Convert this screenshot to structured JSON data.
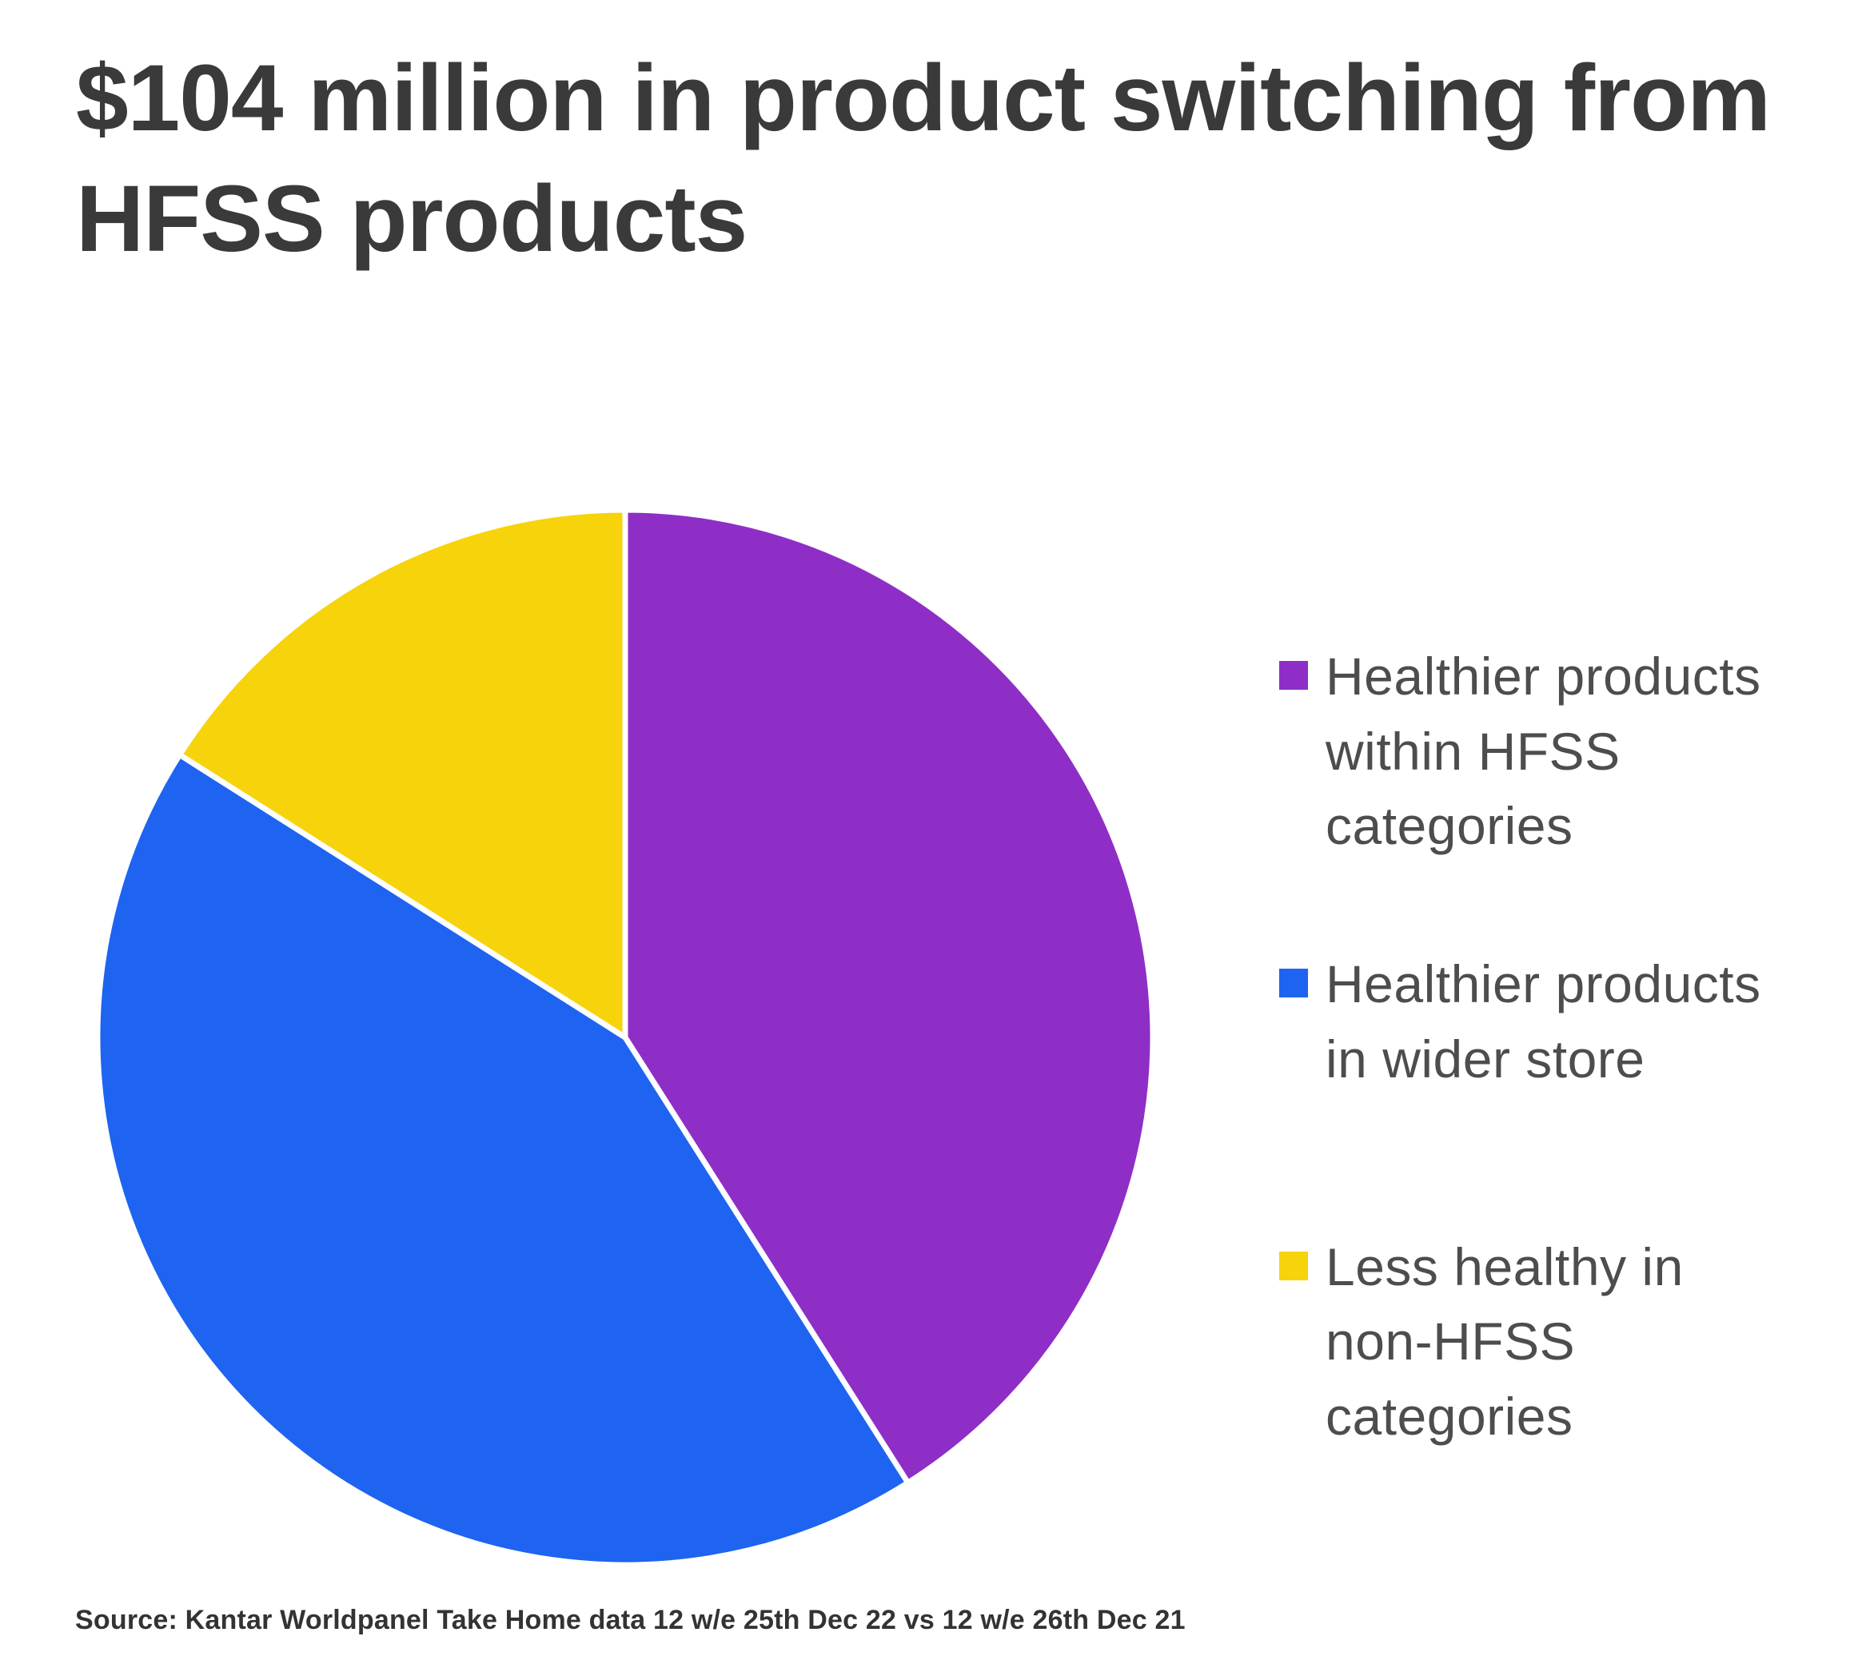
{
  "page": {
    "title": "$104 million in product switching from HFSS products",
    "source": "Source: Kantar Worldpanel Take Home data 12 w/e 25th Dec 22 vs 12 w/e 26th Dec 21"
  },
  "colors": {
    "purple": "#8e2ec6",
    "blue": "#1e64f0",
    "yellow": "#f6d30b",
    "title_text": "#3a3a3a",
    "legend_text": "#4d4d4d",
    "slice_divider": "#ffffff"
  },
  "chart_data": {
    "type": "pie",
    "title": "$104 million in product switching from HFSS products",
    "start_angle_deg": 0,
    "direction": "clockwise",
    "slices": [
      {
        "label": "Healthier products within HFSS categories",
        "value": 41,
        "color": "#8e2ec6"
      },
      {
        "label": "Healthier products in wider store",
        "value": 43,
        "color": "#1e64f0"
      },
      {
        "label": "Less healthy in non-HFSS categories",
        "value": 16,
        "color": "#f6d30b"
      }
    ],
    "unit": "% (estimated from slice angles; no data labels shown)",
    "legend_position": "right",
    "source": "Source: Kantar Worldpanel Take Home data 12 w/e 25th Dec 22 vs 12 w/e 26th Dec 21"
  },
  "legend": {
    "items": [
      {
        "display": "Healthier products\nwithin HFSS\ncategories",
        "color": "#8e2ec6"
      },
      {
        "display": "Healthier products\nin wider store",
        "color": "#1e64f0"
      },
      {
        "display": "Less healthy in\nnon-HFSS\ncategories",
        "color": "#f6d30b"
      }
    ]
  }
}
